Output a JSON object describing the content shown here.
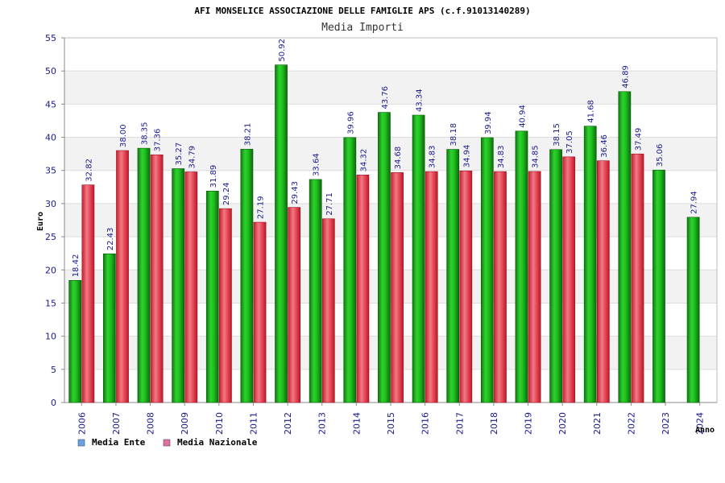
{
  "chart_data": {
    "type": "bar",
    "title": "AFI MONSELICE ASSOCIAZIONE DELLE FAMIGLIE APS (c.f.91013140289)",
    "subtitle": "Media Importi",
    "xlabel": "Anno",
    "ylabel": "Euro",
    "ylim": [
      0,
      55
    ],
    "yticks": [
      0,
      5,
      10,
      15,
      20,
      25,
      30,
      35,
      40,
      45,
      50,
      55
    ],
    "grid": true,
    "legend_position": "bottom-left",
    "categories": [
      "2006",
      "2007",
      "2008",
      "2009",
      "2010",
      "2011",
      "2012",
      "2013",
      "2014",
      "2015",
      "2016",
      "2017",
      "2018",
      "2019",
      "2020",
      "2021",
      "2022",
      "2023",
      "2024"
    ],
    "series": [
      {
        "name": "Media Ente",
        "color": "#22aa22",
        "values": [
          18.42,
          22.43,
          38.35,
          35.27,
          31.89,
          38.21,
          50.92,
          33.64,
          39.96,
          43.76,
          43.34,
          38.18,
          39.94,
          40.94,
          38.15,
          41.68,
          46.89,
          35.06,
          27.94
        ],
        "labels": [
          "18.42",
          "22.43",
          "38.35",
          "35.27",
          "31.89",
          "38.21",
          "50.92",
          "33.64",
          "39.96",
          "43.76",
          "43.34",
          "38.18",
          "39.94",
          "40.94",
          "38.15",
          "41.68",
          "46.89",
          "35.06",
          "27.94"
        ]
      },
      {
        "name": "Media Nazionale",
        "color": "#e03a4a",
        "values": [
          32.82,
          38.0,
          37.36,
          34.79,
          29.24,
          27.19,
          29.43,
          27.71,
          34.32,
          34.68,
          34.83,
          34.94,
          34.83,
          34.85,
          37.05,
          36.46,
          37.49,
          null,
          null
        ],
        "labels": [
          "32.82",
          "38.00",
          "37.36",
          "34.79",
          "29.24",
          "27.19",
          "29.43",
          "27.71",
          "34.32",
          "34.68",
          "34.83",
          "34.94",
          "34.83",
          "34.85",
          "37.05",
          "36.46",
          "37.49",
          "",
          ""
        ]
      }
    ],
    "legend_colors": [
      "#66a3e0",
      "#e070a0"
    ]
  }
}
